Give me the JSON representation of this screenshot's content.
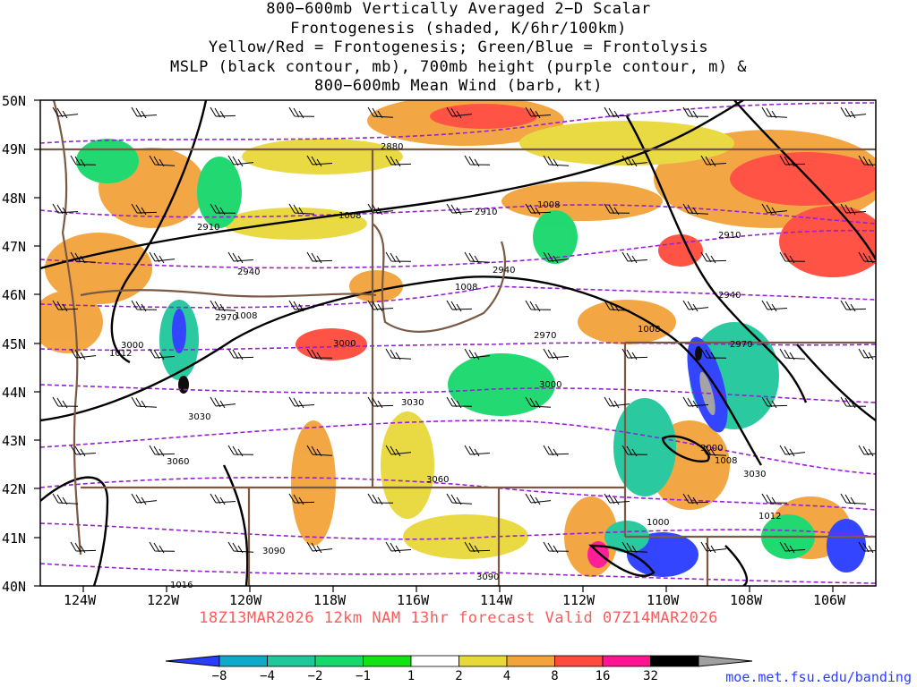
{
  "title_lines": [
    "800−600mb Vertically Averaged 2−D Scalar",
    "Frontogenesis (shaded, K/6hr/100km)",
    "Yellow/Red = Frontogenesis;  Green/Blue = Frontolysis",
    "MSLP (black contour, mb), 700mb height (purple contour, m) &",
    "800−600mb Mean Wind (barb, kt)"
  ],
  "lat_labels": [
    "50N",
    "49N",
    "48N",
    "47N",
    "46N",
    "45N",
    "44N",
    "43N",
    "42N",
    "41N",
    "40N"
  ],
  "lon_labels": [
    "124W",
    "122W",
    "120W",
    "118W",
    "116W",
    "114W",
    "112W",
    "110W",
    "108W",
    "106W"
  ],
  "footer": "18Z13MAR2026 12km NAM 13hr forecast Valid 07Z14MAR2026",
  "credit": "moe.met.fsu.edu/banding",
  "colorbar": {
    "labels": [
      "−8",
      "−4",
      "−2",
      "−1",
      "1",
      "2",
      "4",
      "8",
      "16",
      "32"
    ],
    "colors": [
      "#2a3cff",
      "#11a9c9",
      "#1fc79a",
      "#17d86a",
      "#13e313",
      "#ffffff",
      "#e8d93a",
      "#f2a33a",
      "#ff4a3d",
      "#ff1493",
      "#000000",
      "#a0a0a0"
    ]
  },
  "colors": {
    "mslp": "#000000",
    "height": "#9b1ed9",
    "borders": "#7a5a44",
    "barbs": "#000000"
  },
  "height_labels": [
    "2880",
    "2910",
    "2910",
    "2910",
    "2940",
    "2940",
    "2940",
    "2970",
    "2970",
    "2970",
    "3000",
    "3000",
    "3000",
    "3000",
    "3030",
    "3030",
    "3030",
    "3060",
    "3060",
    "3090",
    "3090"
  ],
  "mslp_labels": [
    "1008",
    "1008",
    "1008",
    "1008",
    "1008",
    "1008",
    "1012",
    "1012",
    "1016",
    "1000",
    "1012"
  ],
  "icons": [
    "wind-barb-icon"
  ]
}
